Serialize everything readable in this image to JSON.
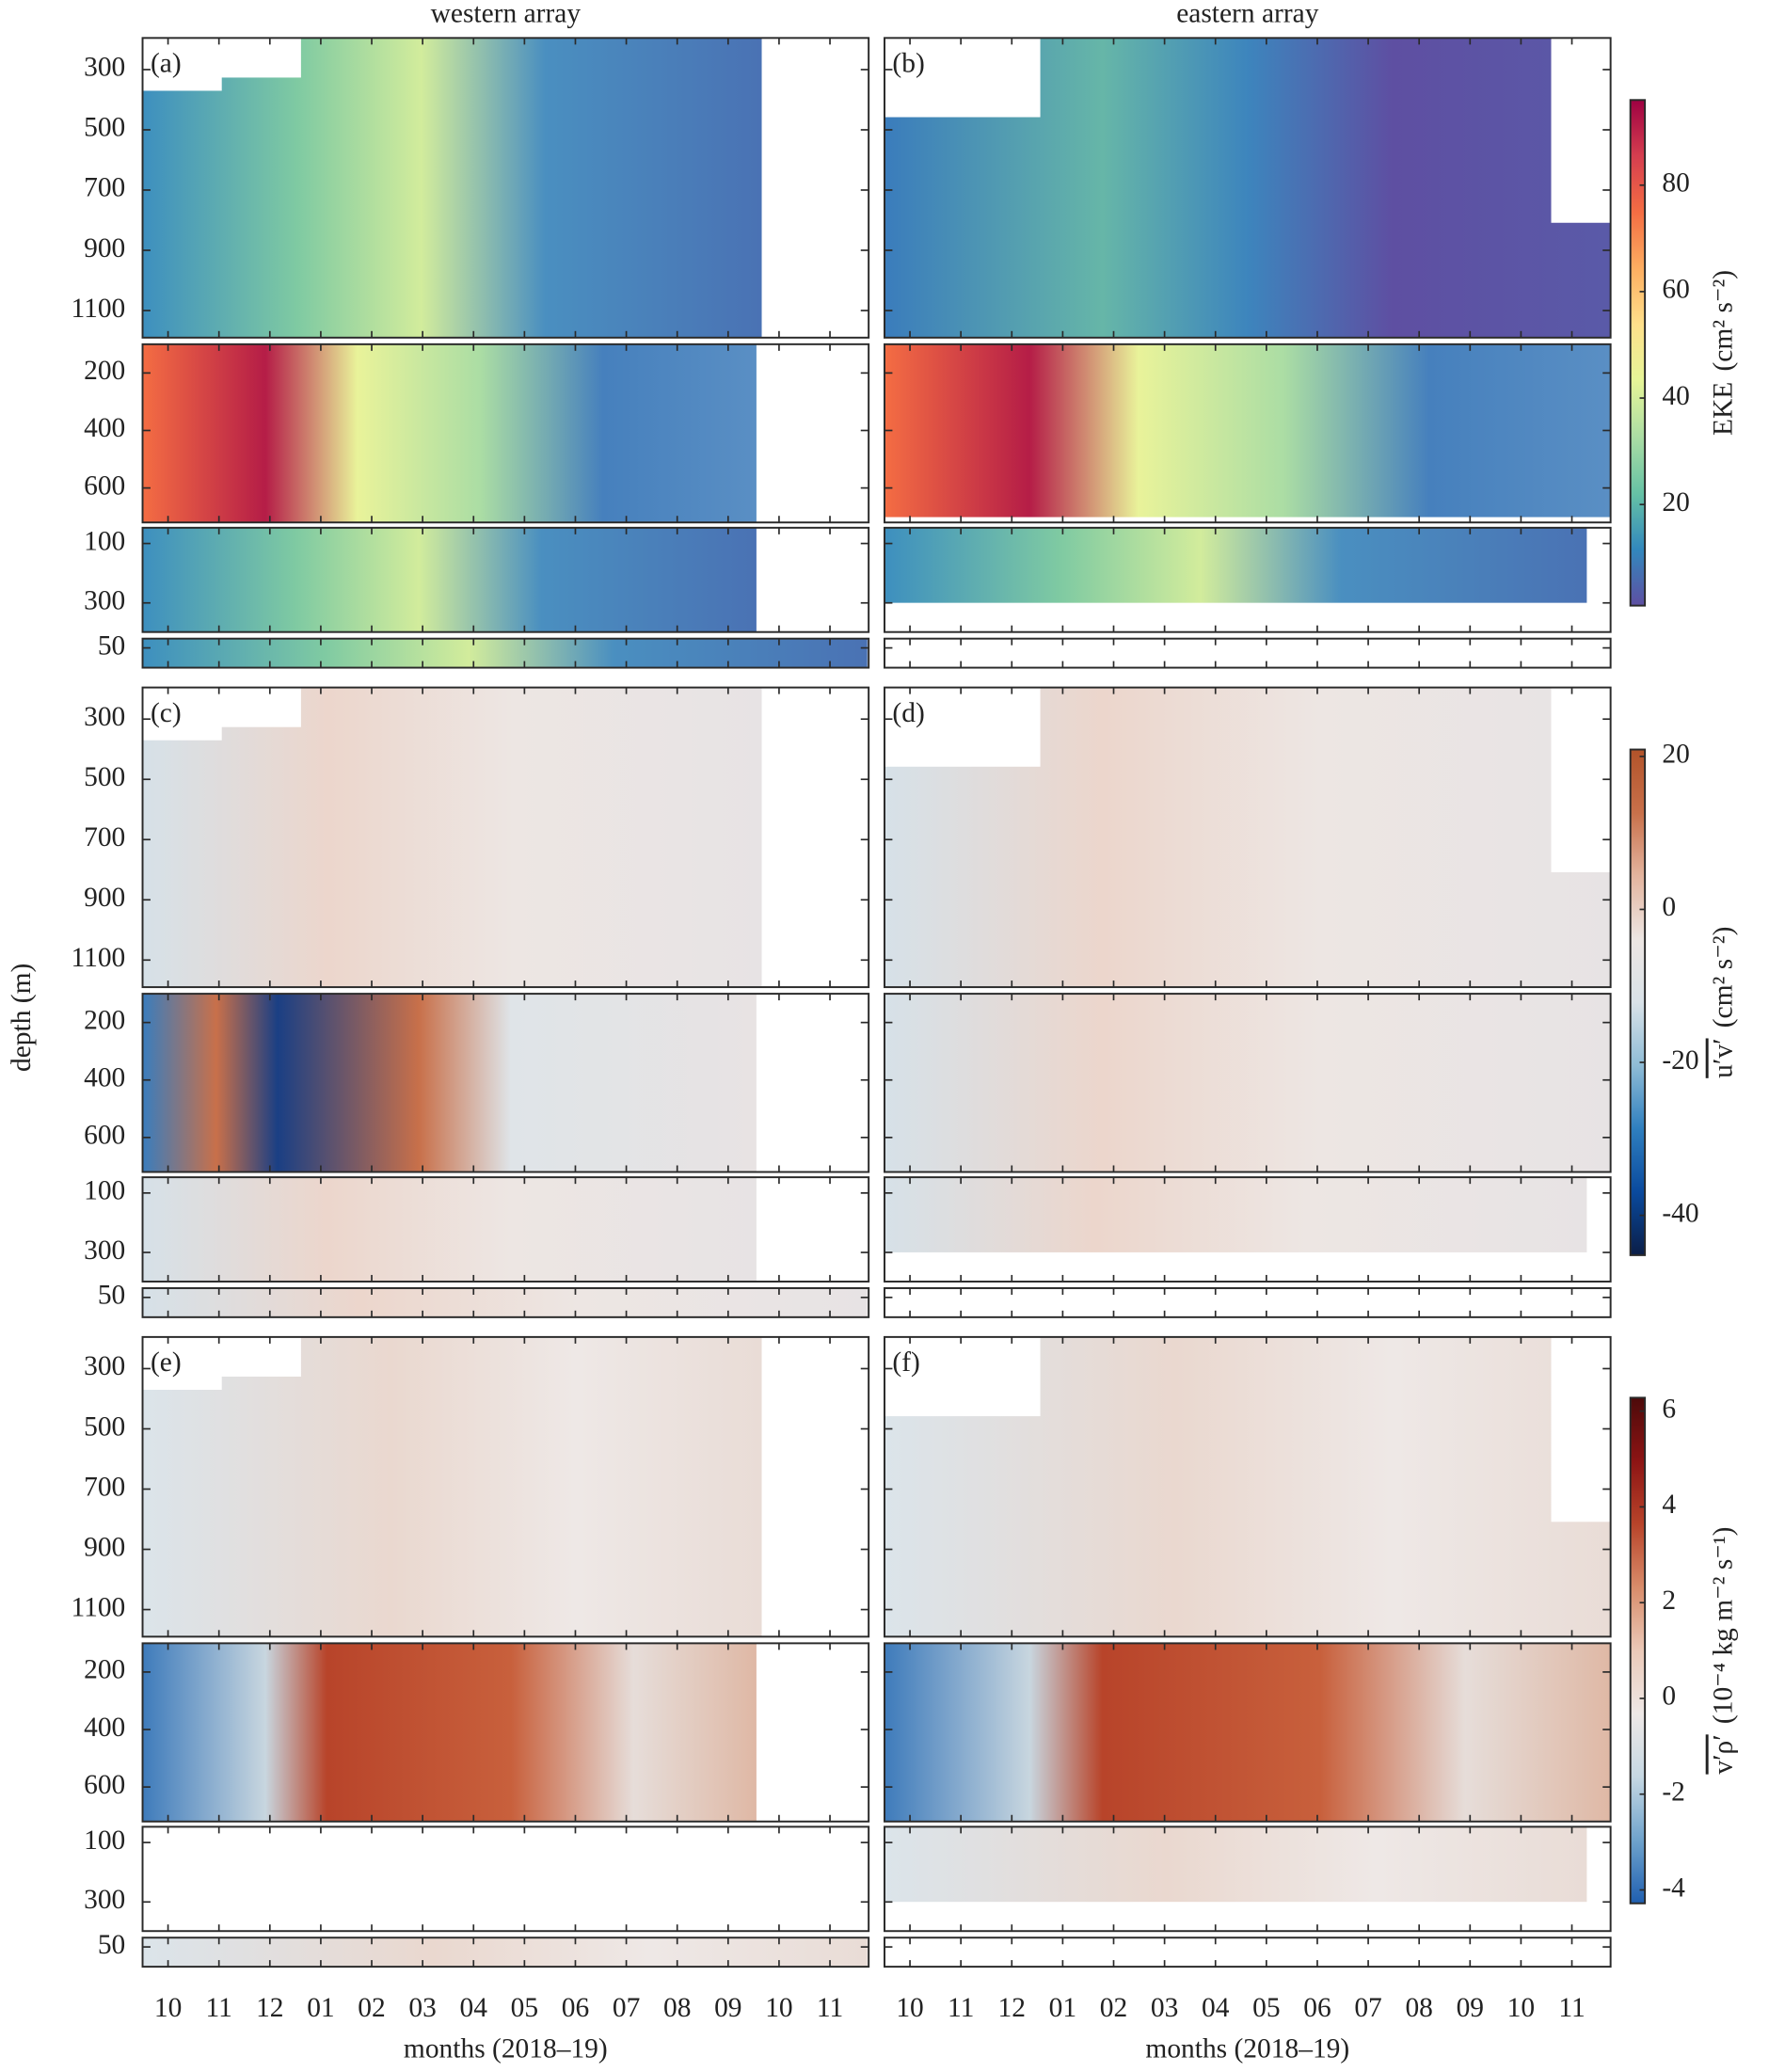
{
  "chart_data": {
    "type": "heatmap",
    "column_titles": [
      "western array",
      "eastern array"
    ],
    "xlabel": "months (2018–19)",
    "ylabel": "depth (m)",
    "xlim": [
      -0.5,
      13.76
    ],
    "xticks": [
      {
        "value": 0,
        "label": "10"
      },
      {
        "value": 1,
        "label": "11"
      },
      {
        "value": 2,
        "label": "12"
      },
      {
        "value": 3,
        "label": "01"
      },
      {
        "value": 4,
        "label": "02"
      },
      {
        "value": 5,
        "label": "03"
      },
      {
        "value": 6,
        "label": "04"
      },
      {
        "value": 7,
        "label": "05"
      },
      {
        "value": 8,
        "label": "06"
      },
      {
        "value": 9,
        "label": "07"
      },
      {
        "value": 10,
        "label": "08"
      },
      {
        "value": 11,
        "label": "09"
      },
      {
        "value": 12,
        "label": "10"
      },
      {
        "value": 13,
        "label": "11"
      }
    ],
    "depth_axes": [
      {
        "ylim": [
          195,
          1190
        ],
        "yticks": [
          300,
          500,
          700,
          900,
          1100
        ]
      },
      {
        "ylim": [
          100,
          720
        ],
        "yticks": [
          200,
          400,
          600
        ]
      },
      {
        "ylim": [
          47,
          398
        ],
        "yticks": [
          100,
          300
        ]
      },
      {
        "ylim": [
          35,
          82
        ],
        "yticks": [
          50
        ]
      }
    ],
    "rows": [
      {
        "panel_labels": [
          "(a)",
          "(b)"
        ],
        "colorbar": {
          "quantity": "EKE",
          "units": "(cm² s⁻²)",
          "overline": false,
          "ylim": [
            1,
            96
          ],
          "yticks": [
            20,
            40,
            60,
            80
          ],
          "colors": [
            "#5e4fa2",
            "#3288bd",
            "#66c2a5",
            "#abdda4",
            "#e6f598",
            "#fee08b",
            "#fdae61",
            "#f46d43",
            "#d53e4f",
            "#9e0142"
          ]
        }
      },
      {
        "panel_labels": [
          "(c)",
          "(d)"
        ],
        "colorbar": {
          "quantity": "u′v′",
          "units": "(cm² s⁻²)",
          "overline": true,
          "ylim": [
            -45.2,
            20.9
          ],
          "yticks": [
            20,
            0,
            -20,
            -40
          ],
          "colors": [
            "#0b1e47",
            "#0a4a9e",
            "#2f7fbf",
            "#8fbcd6",
            "#d9e2e8",
            "#ede6e3",
            "#e3b49e",
            "#c8704a",
            "#b2532a"
          ]
        }
      },
      {
        "panel_labels": [
          "(e)",
          "(f)"
        ],
        "colorbar": {
          "quantity": "v′ρ′",
          "units": "(10⁻⁴ kg m⁻² s⁻¹)",
          "overline": true,
          "ylim": [
            -4.28,
            6.28
          ],
          "yticks": [
            6,
            4,
            2,
            0,
            -2,
            -4
          ],
          "colors": [
            "#1f5fb0",
            "#6fa3cc",
            "#c6d8e3",
            "#eee8e6",
            "#ebc9b8",
            "#d88c6a",
            "#b8442a",
            "#8c1414",
            "#4d0a0a"
          ]
        }
      }
    ]
  }
}
